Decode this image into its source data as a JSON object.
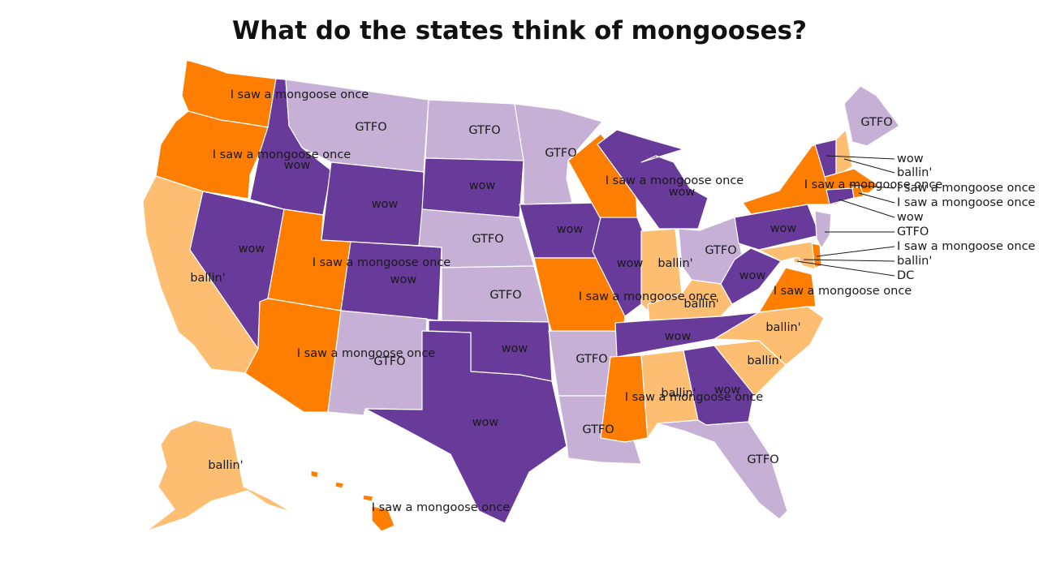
{
  "title": "What do the states think of mongooses?",
  "colors": {
    "wow": "#683a99",
    "GTFO": "#c7b0d5",
    "I saw a mongoose once": "#fd7e00",
    "ballin'": "#fdbe72",
    "DC": "#fdbe72"
  },
  "states": {
    "WA": "I saw a mongoose once",
    "OR": "I saw a mongoose once",
    "CA": "ballin'",
    "NV": "wow",
    "ID": "wow",
    "MT": "GTFO",
    "WY": "wow",
    "UT": "I saw a mongoose once",
    "AZ": "I saw a mongoose once",
    "CO": "wow",
    "NM": "GTFO",
    "ND": "GTFO",
    "SD": "wow",
    "NE": "GTFO",
    "KS": "GTFO",
    "OK": "wow",
    "TX": "wow",
    "MN": "GTFO",
    "IA": "wow",
    "MO": "I saw a mongoose once",
    "AR": "GTFO",
    "LA": "GTFO",
    "WI": "I saw a mongoose once",
    "IL": "wow",
    "MI": "wow",
    "IN": "ballin'",
    "OH": "GTFO",
    "KY": "ballin'",
    "TN": "wow",
    "MS": "I saw a mongoose once",
    "AL": "ballin'",
    "GA": "wow",
    "FL": "GTFO",
    "SC": "ballin'",
    "NC": "ballin'",
    "VA": "I saw a mongoose once",
    "WV": "wow",
    "PA": "wow",
    "NY": "I saw a mongoose once",
    "ME": "GTFO",
    "VT": "wow",
    "NH": "ballin'",
    "MA": "I saw a mongoose once",
    "RI": "I saw a mongoose once",
    "CT": "wow",
    "NJ": "GTFO",
    "DE": "I saw a mongoose once",
    "MD": "ballin'",
    "DC": "DC",
    "AK": "ballin'",
    "HI": "I saw a mongoose once"
  },
  "labels": {
    "WA": "I saw a mongoose once",
    "OR": "I saw a mongoose once",
    "CA": "ballin'",
    "NV": "wow",
    "ID": "wow",
    "MT": "GTFO",
    "WY": "wow",
    "UT": "I saw a mongoose once",
    "AZ": "I saw a mongoose once",
    "CO": "wow",
    "NM": "GTFO",
    "ND": "GTFO",
    "SD": "wow",
    "NE": "GTFO",
    "KS": "GTFO",
    "OK": "wow",
    "TX": "wow",
    "MN": "GTFO",
    "IA": "wow",
    "MO": "I saw a mongoose once",
    "AR": "GTFO",
    "LA": "GTFO",
    "WI": "I saw a mongoose once",
    "IL": "wow",
    "MI": "wow",
    "IN": "ballin'",
    "OH": "GTFO",
    "KY": "ballin'",
    "TN": "wow",
    "MS": "I saw a mongoose once",
    "AL": "ballin'",
    "GA": "wow",
    "FL": "GTFO",
    "SC": "ballin'",
    "NC": "ballin'",
    "VA": "I saw a mongoose once",
    "WV": "wow",
    "PA": "wow",
    "NY": "I saw a mongoose once",
    "ME": "GTFO",
    "AK": "ballin'",
    "HI": "I saw a mongoose once"
  },
  "callouts": {
    "VT": "wow",
    "NH": "ballin'",
    "MA": "I saw a mongoose once",
    "RI": "I saw a mongoose once",
    "CT": "wow",
    "NJ": "GTFO",
    "DE": "I saw a mongoose once",
    "MD": "ballin'",
    "DC": "DC"
  }
}
